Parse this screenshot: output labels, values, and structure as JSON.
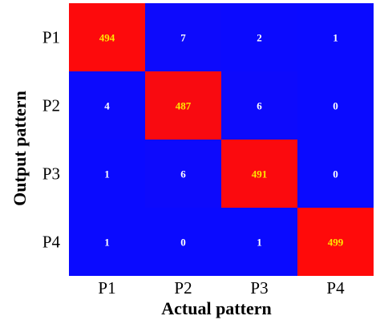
{
  "chart_data": {
    "type": "heatmap",
    "title": "",
    "xlabel": "Actual pattern",
    "ylabel": "Output pattern",
    "x_categories": [
      "P1",
      "P2",
      "P3",
      "P4"
    ],
    "y_categories": [
      "P1",
      "P2",
      "P3",
      "P4"
    ],
    "matrix": [
      [
        494,
        7,
        2,
        1
      ],
      [
        4,
        487,
        6,
        0
      ],
      [
        1,
        6,
        491,
        0
      ],
      [
        1,
        0,
        1,
        499
      ]
    ],
    "color_scale": {
      "low": "#0a0aff",
      "high": "#ff0a0a"
    },
    "value_label_colors": {
      "diagonal": "#ffe600",
      "off_diagonal": "#ffffff"
    },
    "grid": false
  }
}
